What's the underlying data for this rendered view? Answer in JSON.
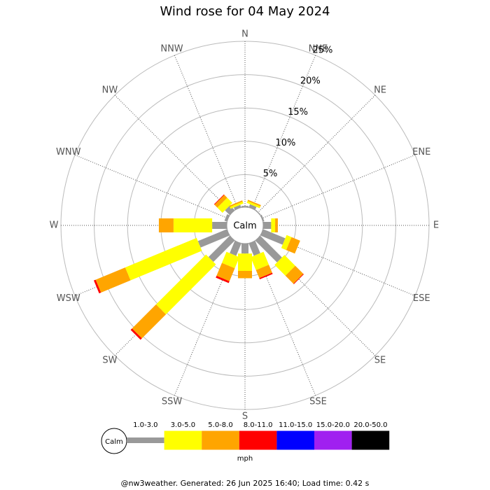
{
  "chart_data": {
    "type": "windrose",
    "title": "Wind rose for 04 May 2024",
    "directions": [
      "N",
      "NNE",
      "NE",
      "ENE",
      "E",
      "ESE",
      "SE",
      "SSE",
      "S",
      "SSW",
      "SW",
      "WSW",
      "W",
      "WNW",
      "NW",
      "NNW"
    ],
    "calm_label": "Calm",
    "unit": "mph",
    "rlim": [
      0,
      25
    ],
    "rticks": [
      {
        "value": 5,
        "label": "5%"
      },
      {
        "value": 10,
        "label": "10%"
      },
      {
        "value": 15,
        "label": "15%"
      },
      {
        "value": 20,
        "label": "20%"
      },
      {
        "value": 25,
        "label": "25%"
      }
    ],
    "series": [
      {
        "name": "1.0-3.0",
        "color": "#999999",
        "values": [
          0.3,
          0.6,
          0.2,
          0.3,
          1.3,
          3.7,
          4.7,
          2.1,
          1.6,
          2.1,
          4.6,
          4.8,
          2.3,
          0.5,
          1.1,
          0.5
        ]
      },
      {
        "name": "3.0-5.0",
        "color": "#ffff00",
        "values": [
          0,
          0.3,
          0,
          0,
          0.6,
          0.8,
          2.3,
          2.1,
          2.6,
          1.8,
          10.6,
          11.6,
          5.8,
          0,
          1.1,
          0.3
        ]
      },
      {
        "name": "5.0-8.0",
        "color": "#ffa500",
        "values": [
          0,
          0.2,
          0,
          0,
          0.4,
          1.4,
          1.7,
          1.3,
          1.1,
          2.1,
          5.1,
          4.8,
          2.2,
          0,
          0.6,
          0.2
        ]
      },
      {
        "name": "8.0-11.0",
        "color": "#ff0000",
        "values": [
          0,
          0,
          0,
          0,
          0,
          0,
          0.1,
          0.2,
          0,
          0.3,
          0.3,
          0.3,
          0,
          0,
          0.1,
          0
        ]
      },
      {
        "name": "11.0-15.0",
        "color": "#0000ff",
        "values": [
          0,
          0,
          0,
          0,
          0,
          0,
          0,
          0,
          0,
          0,
          0,
          0,
          0,
          0,
          0,
          0
        ]
      },
      {
        "name": "15.0-20.0",
        "color": "#a020f0",
        "values": [
          0,
          0,
          0,
          0,
          0,
          0,
          0,
          0,
          0,
          0,
          0,
          0,
          0,
          0,
          0,
          0
        ]
      },
      {
        "name": "20.0-50.0",
        "color": "#000000",
        "values": [
          0,
          0,
          0,
          0,
          0,
          0,
          0,
          0,
          0,
          0,
          0,
          0,
          0,
          0,
          0,
          0
        ]
      }
    ]
  },
  "footer": "@nw3weather. Generated: 26 Jun 2025 16:40; Load time: 0.42 s"
}
